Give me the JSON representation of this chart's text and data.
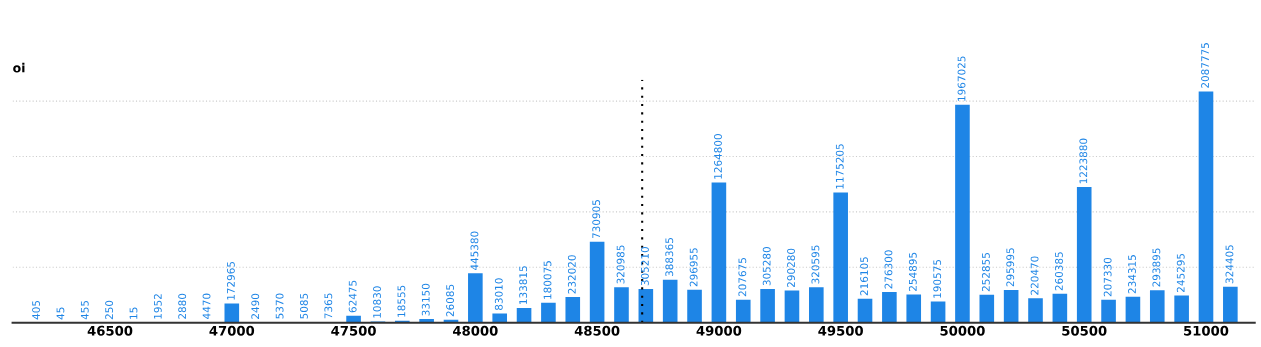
{
  "chart_data": {
    "type": "bar",
    "ylabel": "oi",
    "x": [
      46200,
      46300,
      46400,
      46500,
      46600,
      46700,
      46800,
      46900,
      47000,
      47100,
      47200,
      47300,
      47400,
      47500,
      47600,
      47700,
      47800,
      47900,
      48000,
      48100,
      48200,
      48300,
      48400,
      48500,
      48600,
      48700,
      48800,
      48900,
      49000,
      49100,
      49200,
      49300,
      49400,
      49500,
      49600,
      49700,
      49800,
      49900,
      50000,
      50100,
      50200,
      50300,
      50400,
      50500,
      50600,
      50700,
      50800,
      50900,
      51000,
      51100
    ],
    "values": [
      405,
      45,
      455,
      250,
      15,
      1952,
      2880,
      4470,
      172965,
      2490,
      5370,
      5085,
      7365,
      62475,
      10830,
      18555,
      33150,
      26085,
      445380,
      83010,
      133815,
      180075,
      232020,
      730905,
      320985,
      305210,
      388365,
      296955,
      1264800,
      207675,
      305280,
      290280,
      320595,
      1175205,
      216105,
      276300,
      254895,
      190575,
      1967025,
      252855,
      295995,
      220470,
      260385,
      1223880,
      207330,
      234315,
      293895,
      245295,
      2087775,
      324405
    ],
    "color": "#1e85e6",
    "data_labels": true,
    "xlim": [
      46100,
      51200
    ],
    "xticks": [
      46500,
      47000,
      47500,
      48000,
      48500,
      49000,
      49500,
      50000,
      50500,
      51000
    ],
    "yticks": [
      {
        "value": 500000,
        "label": null
      },
      {
        "value": 1000000,
        "label": null
      },
      {
        "value": 1500000,
        "label": null
      },
      {
        "value": 2000000,
        "label": null
      }
    ],
    "tick_labels": "x",
    "grid": "y",
    "ref_lines": [
      {
        "axis": "x",
        "value": 48685,
        "color": "#000000",
        "line_style": "dotted"
      }
    ]
  }
}
